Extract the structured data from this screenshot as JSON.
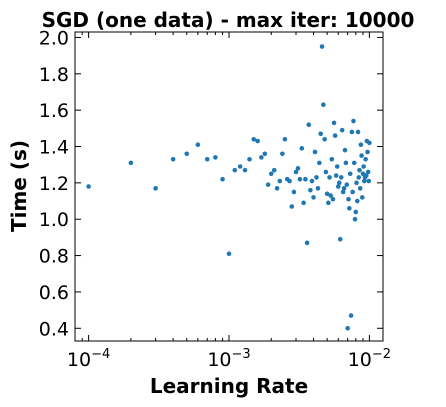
{
  "chart_data": {
    "type": "scatter",
    "title": "SGD (one data) - max iter: 10000",
    "xlabel": "Learning Rate",
    "ylabel": "Time (s)",
    "xscale": "log",
    "xlim": [
      8e-05,
      0.0125
    ],
    "ylim": [
      0.33,
      2.03
    ],
    "x_ticks": [
      {
        "value": 0.0001,
        "base": "10",
        "exp": "−4"
      },
      {
        "value": 0.001,
        "base": "10",
        "exp": "−3"
      },
      {
        "value": 0.01,
        "base": "10",
        "exp": "−2"
      }
    ],
    "y_ticks": [
      {
        "value": 0.4,
        "label": "0.4"
      },
      {
        "value": 0.6,
        "label": "0.6"
      },
      {
        "value": 0.8,
        "label": "0.8"
      },
      {
        "value": 1.0,
        "label": "1.0"
      },
      {
        "value": 1.2,
        "label": "1.2"
      },
      {
        "value": 1.4,
        "label": "1.4"
      },
      {
        "value": 1.6,
        "label": "1.6"
      },
      {
        "value": 1.8,
        "label": "1.8"
      },
      {
        "value": 2.0,
        "label": "2.0"
      }
    ],
    "grid": false,
    "marker_color": "#1f77b4",
    "points": [
      [
        0.0001,
        1.18
      ],
      [
        0.0002,
        1.31
      ],
      [
        0.0003,
        1.17
      ],
      [
        0.0004,
        1.33
      ],
      [
        0.0005,
        1.36
      ],
      [
        0.0006,
        1.41
      ],
      [
        0.0007,
        1.33
      ],
      [
        0.0008,
        1.34
      ],
      [
        0.0009,
        1.22
      ],
      [
        0.001,
        0.81
      ],
      [
        0.0011,
        1.27
      ],
      [
        0.0012,
        1.29
      ],
      [
        0.0013,
        1.27
      ],
      [
        0.0014,
        1.33
      ],
      [
        0.0015,
        1.44
      ],
      [
        0.0016,
        1.43
      ],
      [
        0.0017,
        1.34
      ],
      [
        0.0018,
        1.36
      ],
      [
        0.0019,
        1.19
      ],
      [
        0.002,
        1.25
      ],
      [
        0.0021,
        1.27
      ],
      [
        0.0022,
        1.17
      ],
      [
        0.0023,
        1.21
      ],
      [
        0.0024,
        1.36
      ],
      [
        0.0025,
        1.44
      ],
      [
        0.0026,
        1.22
      ],
      [
        0.0027,
        1.21
      ],
      [
        0.0028,
        1.07
      ],
      [
        0.0029,
        1.15
      ],
      [
        0.003,
        1.26
      ],
      [
        0.0031,
        1.28
      ],
      [
        0.0032,
        1.22
      ],
      [
        0.0033,
        1.39
      ],
      [
        0.0034,
        1.09
      ],
      [
        0.0035,
        1.22
      ],
      [
        0.0036,
        0.87
      ],
      [
        0.0037,
        1.52
      ],
      [
        0.0038,
        1.16
      ],
      [
        0.0039,
        1.21
      ],
      [
        0.004,
        1.12
      ],
      [
        0.0041,
        1.37
      ],
      [
        0.0042,
        1.23
      ],
      [
        0.0043,
        1.17
      ],
      [
        0.0044,
        1.31
      ],
      [
        0.0045,
        1.47
      ],
      [
        0.0046,
        1.95
      ],
      [
        0.0047,
        1.63
      ],
      [
        0.0048,
        1.44
      ],
      [
        0.0049,
        1.26
      ],
      [
        0.005,
        1.14
      ],
      [
        0.0051,
        1.09
      ],
      [
        0.0052,
        1.23
      ],
      [
        0.0053,
        1.13
      ],
      [
        0.0054,
        1.33
      ],
      [
        0.0055,
        1.11
      ],
      [
        0.0056,
        1.53
      ],
      [
        0.0057,
        1.46
      ],
      [
        0.0058,
        1.24
      ],
      [
        0.0059,
        1.29
      ],
      [
        0.006,
        1.18
      ],
      [
        0.0061,
        1.2
      ],
      [
        0.0062,
        0.89
      ],
      [
        0.0063,
        1.23
      ],
      [
        0.0064,
        1.49
      ],
      [
        0.0065,
        1.15
      ],
      [
        0.0066,
        1.17
      ],
      [
        0.0067,
        1.38
      ],
      [
        0.0068,
        1.31
      ],
      [
        0.0069,
        1.19
      ],
      [
        0.007,
        0.4
      ],
      [
        0.0071,
        1.11
      ],
      [
        0.0072,
        1.06
      ],
      [
        0.0073,
        1.25
      ],
      [
        0.0074,
        0.47
      ],
      [
        0.0075,
        1.48
      ],
      [
        0.0076,
        1.15
      ],
      [
        0.0077,
        1.54
      ],
      [
        0.0078,
        1.31
      ],
      [
        0.0079,
        1.0
      ],
      [
        0.008,
        1.04
      ],
      [
        0.0081,
        1.2
      ],
      [
        0.0082,
        1.1
      ],
      [
        0.0083,
        1.48
      ],
      [
        0.0084,
        1.23
      ],
      [
        0.0085,
        1.27
      ],
      [
        0.0086,
        1.17
      ],
      [
        0.0087,
        1.41
      ],
      [
        0.0088,
        1.35
      ],
      [
        0.0089,
        1.12
      ],
      [
        0.009,
        1.25
      ],
      [
        0.0091,
        1.29
      ],
      [
        0.0092,
        1.21
      ],
      [
        0.0093,
        1.23
      ],
      [
        0.0094,
        1.33
      ],
      [
        0.0095,
        1.24
      ],
      [
        0.0096,
        1.43
      ],
      [
        0.0097,
        1.37
      ],
      [
        0.0098,
        1.26
      ],
      [
        0.0099,
        1.21
      ],
      [
        0.01,
        1.42
      ]
    ]
  }
}
